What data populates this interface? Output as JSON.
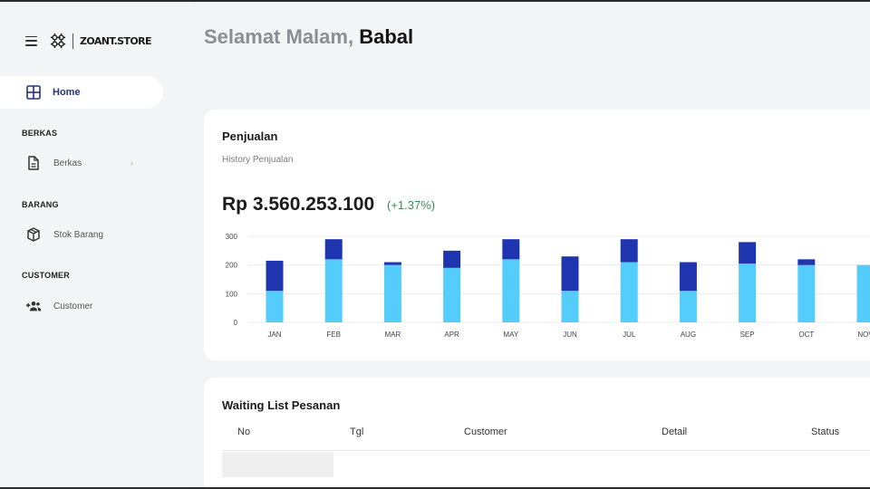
{
  "app": {
    "brand": "ZOANT.STORE"
  },
  "sidebar": {
    "home_label": "Home",
    "sections": [
      {
        "title": "BERKAS",
        "items": [
          {
            "label": "Berkas",
            "icon": "file-icon",
            "has_submenu": true
          }
        ]
      },
      {
        "title": "BARANG",
        "items": [
          {
            "label": "Stok Barang",
            "icon": "box-icon"
          }
        ]
      },
      {
        "title": "CUSTOMER",
        "items": [
          {
            "label": "Customer",
            "icon": "add-user-icon"
          }
        ]
      }
    ]
  },
  "header": {
    "greeting": "Selamat Malam,",
    "user": "Babal"
  },
  "sales": {
    "title": "Penjualan",
    "subtitle": "History Penjualan",
    "total": "Rp 3.560.253.100",
    "change": "(+1.37%)"
  },
  "chart_data": {
    "type": "bar",
    "stacked": true,
    "categories": [
      "JAN",
      "FEB",
      "MAR",
      "APR",
      "MAY",
      "JUN",
      "JUL",
      "AUG",
      "SEP",
      "OCT",
      "NOV"
    ],
    "series": [
      {
        "values": [
          110,
          220,
          200,
          190,
          220,
          110,
          210,
          110,
          205,
          200,
          200
        ],
        "color": "#55cdfc"
      },
      {
        "values": [
          105,
          70,
          10,
          60,
          70,
          120,
          80,
          100,
          75,
          20,
          0
        ],
        "color": "#1f35b0"
      }
    ],
    "yticks": [
      0,
      100,
      200,
      300
    ],
    "ylim": [
      0,
      300
    ],
    "grid": true
  },
  "waiting": {
    "title": "Waiting List Pesanan",
    "columns": [
      "No",
      "Tgl",
      "Customer",
      "Detail",
      "Status"
    ]
  },
  "colors": {
    "accent": "#27327a",
    "positive": "#3a8a5c",
    "bar_light": "#55cdfc",
    "bar_dark": "#1f35b0"
  }
}
